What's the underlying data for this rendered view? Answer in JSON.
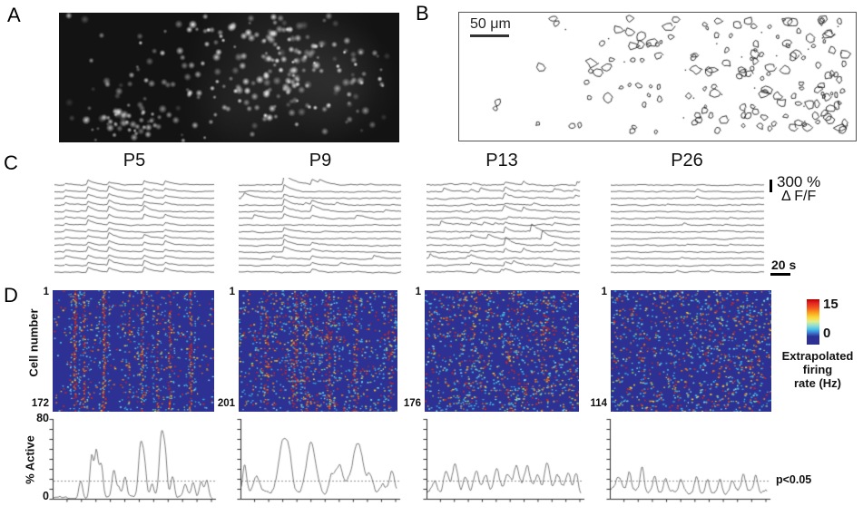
{
  "figure_labels": {
    "a": "A",
    "b": "B",
    "c": "C",
    "d": "D"
  },
  "panel_b": {
    "scale_bar_label": "50 μm"
  },
  "panel_c": {
    "ages": [
      "P5",
      "P9",
      "P13",
      "P26"
    ],
    "amplitude_scale_value": "300 %",
    "amplitude_scale_unit": "Δ F/F",
    "time_scale_label": "20 s"
  },
  "panel_d": {
    "cell_axis_label": "Cell number",
    "heatmap_labels": [
      {
        "first": "1",
        "last": "172"
      },
      {
        "first": "1",
        "last": "201"
      },
      {
        "first": "1",
        "last": "176"
      },
      {
        "first": "1",
        "last": "114"
      }
    ],
    "colorbar": {
      "max": "15",
      "min": "0",
      "caption_line1": "Extrapolated",
      "caption_line2": "firing",
      "caption_line3": "rate (Hz)"
    },
    "active_axis": {
      "label": "% Active",
      "max": "80",
      "min": "0"
    },
    "significance_label": "p<0.05"
  },
  "colors": {
    "heatmap_background": "#2d3193",
    "jet_high": "#d42a1d",
    "jet_mid": "#f7d02c",
    "jet_low": "#3fbde4",
    "trace_color": "#3f3f3f",
    "active_line": "#5a5a5a",
    "axis_color": "#2f2f2f",
    "threshold_color": "#909090"
  },
  "chart_data": [
    {
      "type": "line",
      "name": "percent-active-P5",
      "ylabel": "% Active",
      "ylim": [
        0,
        80
      ],
      "threshold": 19,
      "base": 1.5,
      "noise_step": 2.2,
      "seed": 101,
      "peaks": [
        [
          0.17,
          18,
          2
        ],
        [
          0.24,
          46,
          2
        ],
        [
          0.27,
          50,
          2
        ],
        [
          0.3,
          36,
          2
        ],
        [
          0.38,
          30,
          2
        ],
        [
          0.41,
          12,
          2
        ],
        [
          0.45,
          22,
          2
        ],
        [
          0.55,
          58,
          2.5
        ],
        [
          0.575,
          28,
          2
        ],
        [
          0.62,
          14,
          2
        ],
        [
          0.68,
          68,
          2.5
        ],
        [
          0.705,
          38,
          2
        ],
        [
          0.75,
          22,
          2
        ],
        [
          0.83,
          12,
          2
        ],
        [
          0.88,
          16,
          2
        ],
        [
          0.93,
          18,
          2
        ],
        [
          0.965,
          20,
          2
        ]
      ]
    },
    {
      "type": "line",
      "name": "percent-active-P9",
      "ylabel": "% Active",
      "ylim": [
        0,
        80
      ],
      "threshold": 19,
      "base": 6,
      "noise_step": 3.5,
      "seed": 102,
      "peaks": [
        [
          0.02,
          28,
          2
        ],
        [
          0.1,
          16,
          3
        ],
        [
          0.27,
          58,
          5
        ],
        [
          0.31,
          22,
          3
        ],
        [
          0.45,
          55,
          5
        ],
        [
          0.58,
          18,
          3
        ],
        [
          0.63,
          30,
          4
        ],
        [
          0.75,
          52,
          6
        ],
        [
          0.83,
          18,
          3
        ],
        [
          0.91,
          12,
          3
        ],
        [
          0.97,
          26,
          3
        ]
      ]
    },
    {
      "type": "line",
      "name": "percent-active-P13",
      "ylabel": "% Active",
      "ylim": [
        0,
        80
      ],
      "threshold": 19,
      "base": 7,
      "noise_step": 4.5,
      "seed": 103,
      "peaks": [
        [
          0.05,
          14,
          3
        ],
        [
          0.12,
          22,
          3
        ],
        [
          0.18,
          31,
          3
        ],
        [
          0.25,
          16,
          3
        ],
        [
          0.32,
          24,
          3
        ],
        [
          0.38,
          18,
          3
        ],
        [
          0.45,
          25,
          3
        ],
        [
          0.52,
          18,
          3
        ],
        [
          0.58,
          24,
          3
        ],
        [
          0.65,
          27,
          3
        ],
        [
          0.72,
          18,
          3
        ],
        [
          0.78,
          31,
          3
        ],
        [
          0.85,
          16,
          3
        ],
        [
          0.92,
          25,
          3
        ],
        [
          0.97,
          22,
          2
        ]
      ]
    },
    {
      "type": "line",
      "name": "percent-active-P26",
      "ylabel": "% Active",
      "ylim": [
        0,
        80
      ],
      "threshold": 19,
      "base": 8,
      "noise_step": 3.5,
      "seed": 104,
      "peaks": [
        [
          0.05,
          16,
          3
        ],
        [
          0.12,
          20,
          2
        ],
        [
          0.2,
          24,
          2
        ],
        [
          0.28,
          16,
          2
        ],
        [
          0.35,
          18,
          2
        ],
        [
          0.45,
          13,
          2
        ],
        [
          0.55,
          15,
          2
        ],
        [
          0.62,
          12,
          2
        ],
        [
          0.7,
          14,
          2
        ],
        [
          0.78,
          12,
          2
        ],
        [
          0.85,
          16,
          2
        ],
        [
          0.93,
          18,
          2
        ]
      ]
    }
  ],
  "render": {
    "traces": [
      {
        "shared_events": [
          [
            0.06,
            2.5
          ],
          [
            0.2,
            5
          ],
          [
            0.33,
            5.5
          ],
          [
            0.55,
            6
          ],
          [
            0.68,
            4
          ]
        ],
        "participation": 0.92,
        "indiv_prob": 0.3,
        "indiv_max": 2,
        "indiv_amp": [
          1.5,
          3.5
        ],
        "tau": 9,
        "noise": 0.5,
        "boost": [],
        "seed": 201
      },
      {
        "shared_events": [
          [
            0.27,
            6.5
          ],
          [
            0.44,
            4.5
          ]
        ],
        "participation": 0.72,
        "indiv_prob": 0.55,
        "indiv_max": 2,
        "indiv_amp": [
          2,
          4.5
        ],
        "tau": 10,
        "noise": 0.62,
        "boost": [
          [
            0,
            1.6
          ]
        ],
        "seed": 202
      },
      {
        "shared_events": [
          [
            0.28,
            3
          ],
          [
            0.5,
            4
          ],
          [
            0.62,
            4
          ],
          [
            0.82,
            3
          ]
        ],
        "participation": 0.5,
        "indiv_prob": 0.85,
        "indiv_max": 3,
        "indiv_amp": [
          2,
          6
        ],
        "tau": 8,
        "noise": 0.8,
        "boost": [
          [
            7,
            1.8
          ],
          [
            8,
            2.1
          ],
          [
            9,
            1.7
          ]
        ],
        "seed": 203
      },
      {
        "shared_events": [],
        "participation": 0,
        "indiv_prob": 0.55,
        "indiv_max": 2,
        "indiv_amp": [
          1.5,
          3
        ],
        "tau": 6,
        "noise": 0.6,
        "boost": [],
        "seed": 204
      }
    ],
    "heatmaps": [
      {
        "scatter": 380,
        "streaks": 4,
        "seed": 301,
        "columns": [
          [
            0.135,
            0.8,
            3
          ],
          [
            0.19,
            0.5,
            2.5
          ],
          [
            0.315,
            0.85,
            3.5
          ],
          [
            0.47,
            0.3,
            2.5
          ],
          [
            0.55,
            0.6,
            3
          ],
          [
            0.645,
            0.35,
            2.5
          ],
          [
            0.72,
            0.5,
            3
          ],
          [
            0.85,
            0.65,
            3
          ]
        ]
      },
      {
        "scatter": 780,
        "streaks": 14,
        "seed": 302,
        "columns": [
          [
            0.17,
            0.5,
            5
          ],
          [
            0.35,
            0.65,
            6
          ],
          [
            0.42,
            0.4,
            5
          ],
          [
            0.56,
            0.6,
            6
          ],
          [
            0.73,
            0.55,
            6
          ],
          [
            0.95,
            0.5,
            5
          ]
        ]
      },
      {
        "scatter": 950,
        "streaks": 26,
        "seed": 303,
        "columns": [
          [
            0.3,
            0.25,
            8
          ],
          [
            0.55,
            0.2,
            8
          ],
          [
            0.78,
            0.28,
            10
          ]
        ]
      },
      {
        "scatter": 1050,
        "streaks": 6,
        "seed": 304,
        "columns": []
      }
    ]
  }
}
